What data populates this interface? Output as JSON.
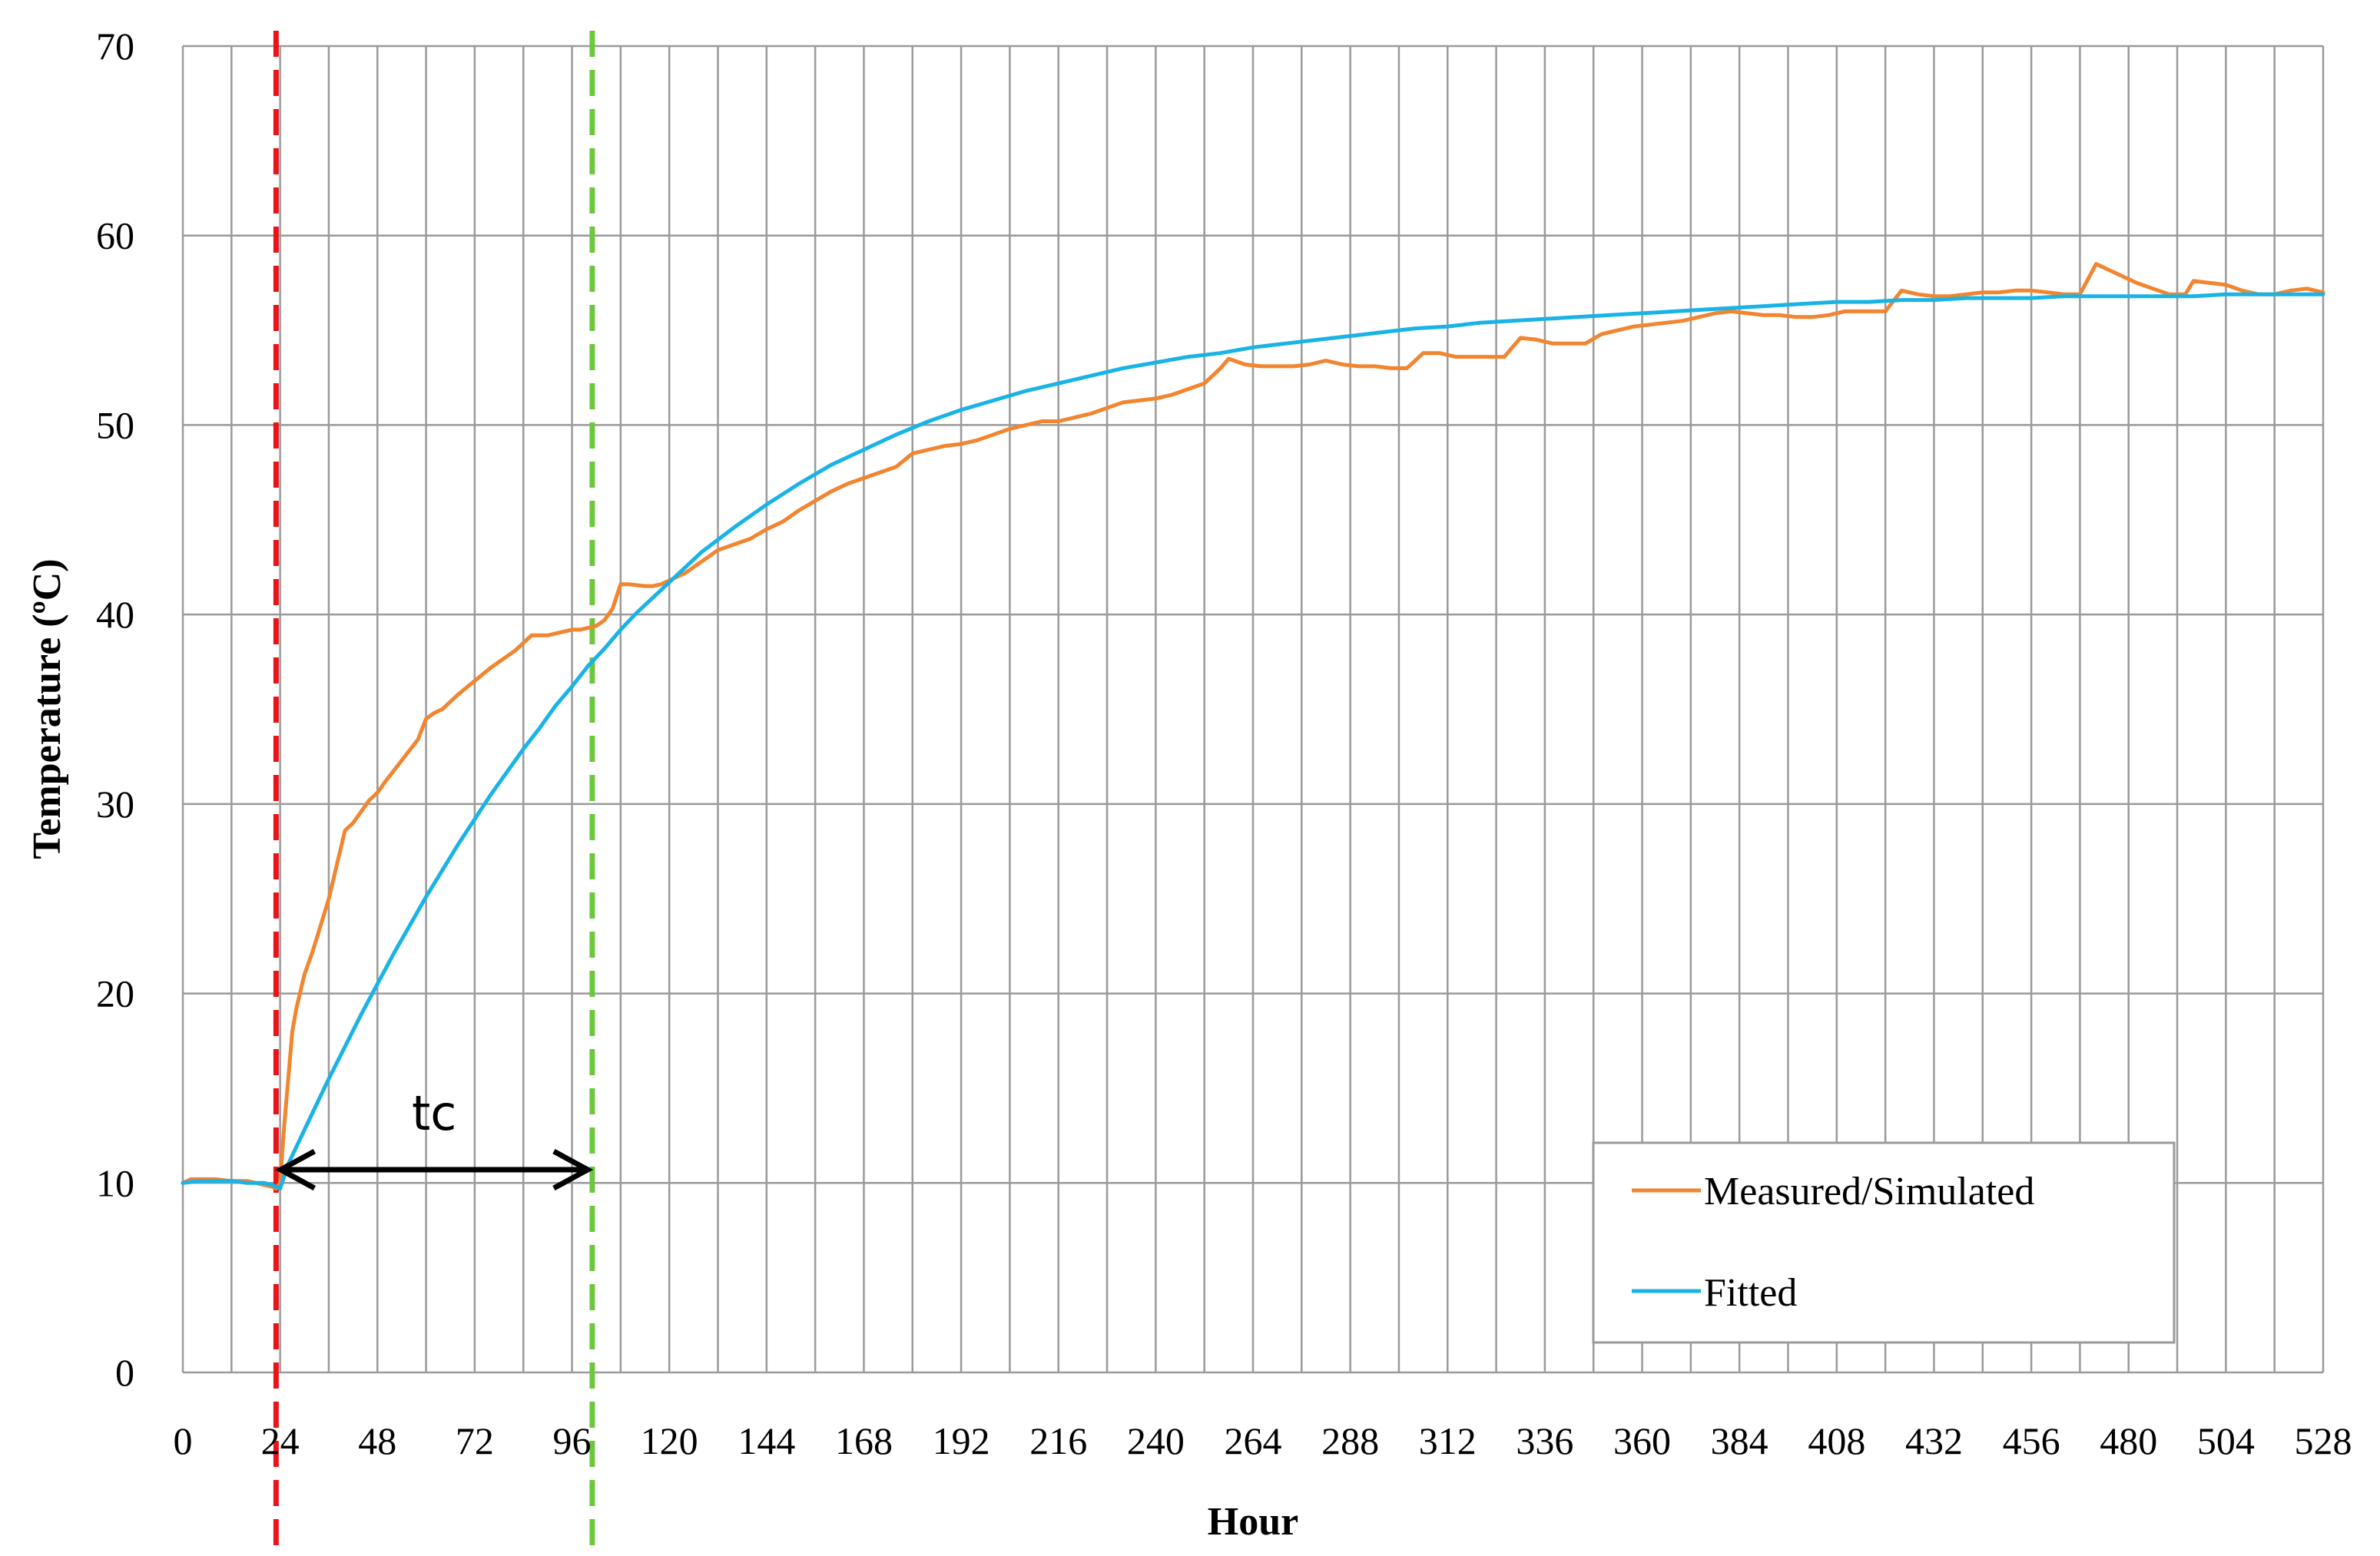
{
  "chart_data": {
    "type": "line",
    "title": "",
    "xlabel": "Hour",
    "ylabel": "Temperature (ºC)",
    "xlim": [
      0,
      528
    ],
    "ylim": [
      0,
      70
    ],
    "xticks": [
      0,
      24,
      48,
      72,
      96,
      120,
      144,
      168,
      192,
      216,
      240,
      264,
      288,
      312,
      336,
      360,
      384,
      408,
      432,
      456,
      480,
      504,
      528
    ],
    "yticks": [
      0,
      10,
      20,
      30,
      40,
      50,
      60,
      70
    ],
    "grid": true,
    "legend_position": "bottom-right",
    "series": [
      {
        "name": "Measured/Simulated",
        "color": "#F28530",
        "x": [
          0,
          2,
          8,
          12,
          16,
          20,
          22,
          23,
          24,
          25,
          26,
          27,
          28,
          30,
          32,
          34,
          36,
          38,
          40,
          42,
          44,
          46,
          48,
          50,
          54,
          58,
          60,
          62,
          64,
          66,
          68,
          72,
          76,
          78,
          82,
          86,
          88,
          90,
          92,
          96,
          98,
          102,
          104,
          106,
          108,
          110,
          114,
          116,
          118,
          120,
          124,
          128,
          132,
          136,
          140,
          144,
          148,
          152,
          156,
          160,
          164,
          168,
          172,
          176,
          180,
          184,
          188,
          192,
          196,
          200,
          204,
          208,
          212,
          216,
          220,
          224,
          228,
          232,
          236,
          240,
          244,
          248,
          252,
          256,
          258,
          262,
          266,
          270,
          274,
          278,
          282,
          286,
          290,
          294,
          298,
          302,
          306,
          310,
          314,
          318,
          322,
          326,
          330,
          334,
          338,
          342,
          346,
          350,
          354,
          358,
          362,
          366,
          370,
          374,
          378,
          382,
          386,
          390,
          394,
          398,
          402,
          406,
          410,
          414,
          418,
          420,
          424,
          428,
          432,
          436,
          440,
          444,
          448,
          452,
          456,
          460,
          464,
          468,
          472,
          476,
          478,
          482,
          486,
          490,
          494,
          496,
          500,
          504,
          508,
          512,
          516,
          520,
          524,
          528
        ],
        "values": [
          10.0,
          10.2,
          10.2,
          10.1,
          10.1,
          9.9,
          9.8,
          9.7,
          10.0,
          13.0,
          15.5,
          18.0,
          19.2,
          21.0,
          22.2,
          23.6,
          25.0,
          26.8,
          28.6,
          29.0,
          29.6,
          30.2,
          30.6,
          31.2,
          32.3,
          33.4,
          34.5,
          34.8,
          35.0,
          35.4,
          35.8,
          36.5,
          37.2,
          37.5,
          38.1,
          38.9,
          38.9,
          38.9,
          39.0,
          39.2,
          39.2,
          39.4,
          39.7,
          40.3,
          41.6,
          41.6,
          41.5,
          41.5,
          41.6,
          41.8,
          42.2,
          42.8,
          43.4,
          43.7,
          44.0,
          44.5,
          44.9,
          45.5,
          46.0,
          46.5,
          46.9,
          47.2,
          47.5,
          47.8,
          48.5,
          48.7,
          48.9,
          49.0,
          49.2,
          49.5,
          49.8,
          50.0,
          50.2,
          50.2,
          50.4,
          50.6,
          50.9,
          51.2,
          51.3,
          51.4,
          51.6,
          51.9,
          52.2,
          53.0,
          53.5,
          53.2,
          53.1,
          53.1,
          53.1,
          53.2,
          53.4,
          53.2,
          53.1,
          53.1,
          53.0,
          53.0,
          53.8,
          53.8,
          53.6,
          53.6,
          53.6,
          53.6,
          54.6,
          54.5,
          54.3,
          54.3,
          54.3,
          54.8,
          55.0,
          55.2,
          55.3,
          55.4,
          55.5,
          55.7,
          55.9,
          56.0,
          55.9,
          55.8,
          55.8,
          55.7,
          55.7,
          55.8,
          56.0,
          56.0,
          56.0,
          56.0,
          57.1,
          56.9,
          56.8,
          56.8,
          56.9,
          57.0,
          57.0,
          57.1,
          57.1,
          57.0,
          56.9,
          56.9,
          58.5,
          58.1,
          57.9,
          57.5,
          57.2,
          56.9,
          56.9,
          57.6,
          57.5,
          57.4,
          57.1,
          56.9,
          56.9,
          57.1,
          57.2,
          57.0
        ]
      },
      {
        "name": "Fitted",
        "color": "#19B3E6",
        "x": [
          0,
          4,
          8,
          12,
          16,
          20,
          22,
          24,
          26,
          28,
          32,
          36,
          40,
          44,
          48,
          52,
          56,
          60,
          64,
          68,
          72,
          76,
          80,
          84,
          88,
          92,
          96,
          100,
          104,
          108,
          112,
          116,
          120,
          128,
          136,
          144,
          152,
          160,
          168,
          176,
          184,
          192,
          200,
          208,
          216,
          224,
          232,
          240,
          248,
          256,
          264,
          272,
          280,
          288,
          296,
          304,
          312,
          320,
          328,
          336,
          344,
          352,
          360,
          368,
          376,
          384,
          392,
          400,
          408,
          416,
          424,
          432,
          440,
          448,
          456,
          464,
          472,
          480,
          488,
          496,
          504,
          512,
          520,
          528
        ],
        "values": [
          10.0,
          10.1,
          10.1,
          10.1,
          10.0,
          10.0,
          9.9,
          9.7,
          11.0,
          11.9,
          13.7,
          15.5,
          17.2,
          18.9,
          20.5,
          22.1,
          23.6,
          25.1,
          26.5,
          27.9,
          29.2,
          30.5,
          31.7,
          32.9,
          34.0,
          35.2,
          36.2,
          37.3,
          38.2,
          39.2,
          40.1,
          40.9,
          41.7,
          43.3,
          44.6,
          45.8,
          46.9,
          47.9,
          48.7,
          49.5,
          50.2,
          50.8,
          51.3,
          51.8,
          52.2,
          52.6,
          53.0,
          53.3,
          53.6,
          53.8,
          54.1,
          54.3,
          54.5,
          54.7,
          54.9,
          55.1,
          55.2,
          55.4,
          55.5,
          55.6,
          55.7,
          55.8,
          55.9,
          56.0,
          56.1,
          56.2,
          56.3,
          56.4,
          56.5,
          56.5,
          56.6,
          56.6,
          56.7,
          56.7,
          56.7,
          56.8,
          56.8,
          56.8,
          56.8,
          56.8,
          56.9,
          56.9,
          56.9,
          56.9
        ]
      }
    ],
    "vertical_lines": [
      {
        "x": 23,
        "color": "#E8141B"
      },
      {
        "x": 101,
        "color": "#6CC73E"
      }
    ],
    "annotation": {
      "text": "tc",
      "x_start": 23,
      "x_end": 101,
      "y": 10.7,
      "color": "#000000"
    }
  }
}
